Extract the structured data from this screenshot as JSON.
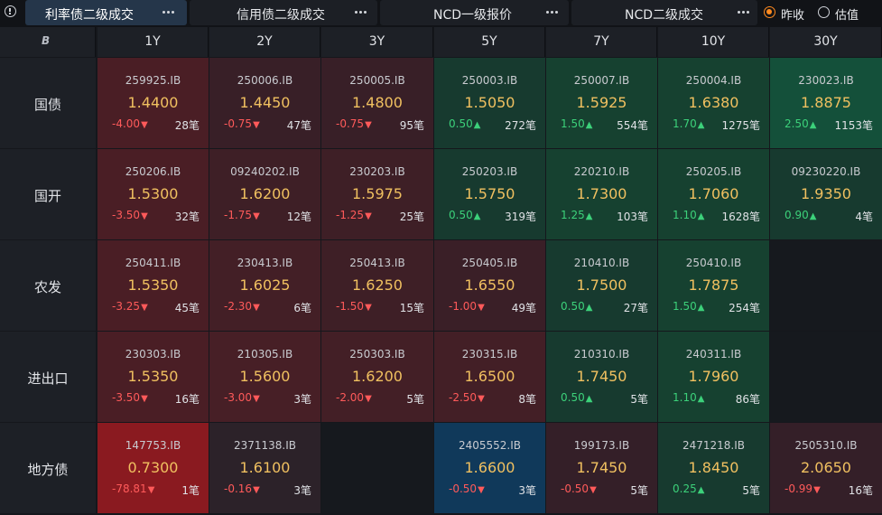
{
  "tabs": [
    {
      "label": "利率债二级成交",
      "active": true
    },
    {
      "label": "信用债二级成交",
      "active": false
    },
    {
      "label": "NCD一级报价",
      "active": false
    },
    {
      "label": "NCD二级成交",
      "active": false
    }
  ],
  "price_mode": {
    "options": [
      {
        "label": "昨收",
        "checked": true
      },
      {
        "label": "估值",
        "checked": false
      }
    ]
  },
  "grid": {
    "corner_logo": "B",
    "columns": [
      "1Y",
      "2Y",
      "3Y",
      "5Y",
      "7Y",
      "10Y",
      "30Y"
    ],
    "rows": [
      {
        "label": "国债",
        "cells": [
          {
            "code": "259925.IB",
            "yield": "1.4400",
            "change": "-4.00",
            "direction": "down",
            "count": "28笔",
            "color": "#4a1e25"
          },
          {
            "code": "250006.IB",
            "yield": "1.4450",
            "change": "-0.75",
            "direction": "down",
            "count": "47笔",
            "color": "#381f27"
          },
          {
            "code": "250005.IB",
            "yield": "1.4800",
            "change": "-0.75",
            "direction": "down",
            "count": "95笔",
            "color": "#381f27"
          },
          {
            "code": "250003.IB",
            "yield": "1.5050",
            "change": "0.50",
            "direction": "up",
            "count": "272笔",
            "color": "#173a2f"
          },
          {
            "code": "250007.IB",
            "yield": "1.5925",
            "change": "1.50",
            "direction": "up",
            "count": "554笔",
            "color": "#164130"
          },
          {
            "code": "250004.IB",
            "yield": "1.6380",
            "change": "1.70",
            "direction": "up",
            "count": "1275笔",
            "color": "#164130"
          },
          {
            "code": "230023.IB",
            "yield": "1.8875",
            "change": "2.50",
            "direction": "up",
            "count": "1153笔",
            "color": "#14503a"
          }
        ]
      },
      {
        "label": "国开",
        "cells": [
          {
            "code": "250206.IB",
            "yield": "1.5300",
            "change": "-3.50",
            "direction": "down",
            "count": "32笔",
            "color": "#4a1e25"
          },
          {
            "code": "09240202.IB",
            "yield": "1.6200",
            "change": "-1.75",
            "direction": "down",
            "count": "12笔",
            "color": "#3e1f26"
          },
          {
            "code": "230203.IB",
            "yield": "1.5975",
            "change": "-1.25",
            "direction": "down",
            "count": "25笔",
            "color": "#3e1f26"
          },
          {
            "code": "250203.IB",
            "yield": "1.5750",
            "change": "0.50",
            "direction": "up",
            "count": "319笔",
            "color": "#173a2f"
          },
          {
            "code": "220210.IB",
            "yield": "1.7300",
            "change": "1.25",
            "direction": "up",
            "count": "103笔",
            "color": "#164130"
          },
          {
            "code": "250205.IB",
            "yield": "1.7060",
            "change": "1.10",
            "direction": "up",
            "count": "1628笔",
            "color": "#164130"
          },
          {
            "code": "09230220.IB",
            "yield": "1.9350",
            "change": "0.90",
            "direction": "up",
            "count": "4笔",
            "color": "#173a2f"
          }
        ]
      },
      {
        "label": "农发",
        "cells": [
          {
            "code": "250411.IB",
            "yield": "1.5350",
            "change": "-3.25",
            "direction": "down",
            "count": "45笔",
            "color": "#4a1e25"
          },
          {
            "code": "230413.IB",
            "yield": "1.6025",
            "change": "-2.30",
            "direction": "down",
            "count": "6笔",
            "color": "#431f26"
          },
          {
            "code": "250413.IB",
            "yield": "1.6250",
            "change": "-1.50",
            "direction": "down",
            "count": "15笔",
            "color": "#3e1f26"
          },
          {
            "code": "250405.IB",
            "yield": "1.6550",
            "change": "-1.00",
            "direction": "down",
            "count": "49笔",
            "color": "#3a1f27"
          },
          {
            "code": "210410.IB",
            "yield": "1.7500",
            "change": "0.50",
            "direction": "up",
            "count": "27笔",
            "color": "#173a2f"
          },
          {
            "code": "250410.IB",
            "yield": "1.7875",
            "change": "1.50",
            "direction": "up",
            "count": "254笔",
            "color": "#164130"
          },
          null
        ]
      },
      {
        "label": "进出口",
        "cells": [
          {
            "code": "230303.IB",
            "yield": "1.5350",
            "change": "-3.50",
            "direction": "down",
            "count": "16笔",
            "color": "#4a1e25"
          },
          {
            "code": "210305.IB",
            "yield": "1.5600",
            "change": "-3.00",
            "direction": "down",
            "count": "3笔",
            "color": "#471f26"
          },
          {
            "code": "250303.IB",
            "yield": "1.6200",
            "change": "-2.00",
            "direction": "down",
            "count": "5笔",
            "color": "#431f26"
          },
          {
            "code": "230315.IB",
            "yield": "1.6500",
            "change": "-2.50",
            "direction": "down",
            "count": "8笔",
            "color": "#431f26"
          },
          {
            "code": "210310.IB",
            "yield": "1.7450",
            "change": "0.50",
            "direction": "up",
            "count": "5笔",
            "color": "#173a2f"
          },
          {
            "code": "240311.IB",
            "yield": "1.7960",
            "change": "1.10",
            "direction": "up",
            "count": "86笔",
            "color": "#164130"
          },
          null
        ]
      },
      {
        "label": "地方债",
        "cells": [
          {
            "code": "147753.IB",
            "yield": "0.7300",
            "change": "-78.81",
            "direction": "down",
            "count": "1笔",
            "color": "#8a1a20"
          },
          {
            "code": "2371138.IB",
            "yield": "1.6100",
            "change": "-0.16",
            "direction": "down",
            "count": "3笔",
            "color": "#2c2229"
          },
          null,
          {
            "code": "2405552.IB",
            "yield": "1.6600",
            "change": "-0.50",
            "direction": "down",
            "count": "3笔",
            "color": "#10395a"
          },
          {
            "code": "199173.IB",
            "yield": "1.7450",
            "change": "-0.50",
            "direction": "down",
            "count": "5笔",
            "color": "#341f28"
          },
          {
            "code": "2471218.IB",
            "yield": "1.8450",
            "change": "0.25",
            "direction": "up",
            "count": "5笔",
            "color": "#173a2f"
          },
          {
            "code": "2505310.IB",
            "yield": "2.0650",
            "change": "-0.99",
            "direction": "down",
            "count": "16笔",
            "color": "#341f28"
          }
        ]
      }
    ],
    "empty_cell_color": "#16191e",
    "arrow_up": "▲",
    "arrow_down": "▼"
  }
}
